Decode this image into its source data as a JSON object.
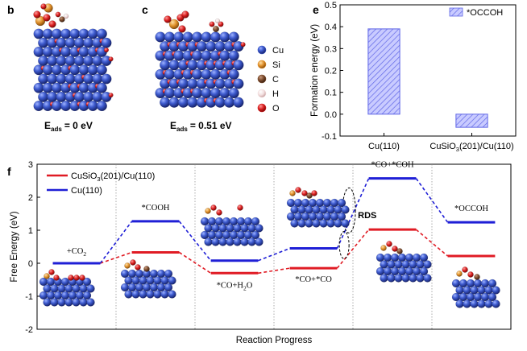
{
  "panels": {
    "b": "b",
    "c": "c",
    "e": "e",
    "f": "f"
  },
  "structures": {
    "b_energy_main": "E",
    "b_energy_sub": "ads",
    "b_energy_value": "= 0 eV",
    "c_energy_main": "E",
    "c_energy_sub": "ads",
    "c_energy_value": "= 0.51 eV"
  },
  "atom_legend": [
    {
      "label": "Cu",
      "color": "#3a57c4"
    },
    {
      "label": "Si",
      "color": "#e0902a"
    },
    {
      "label": "C",
      "color": "#7a4a2c"
    },
    {
      "label": "H",
      "color": "#f2dede"
    },
    {
      "label": "O",
      "color": "#d42020"
    }
  ],
  "chart_data": [
    {
      "type": "bar",
      "panel": "e",
      "categories": [
        "Cu(110)",
        "CuSiO3(201)/Cu(110)"
      ],
      "category_labels": [
        {
          "main": "Cu(110)",
          "sub": "",
          "tail": ""
        },
        {
          "main": "CuSiO",
          "sub": "3",
          "tail": "(201)/Cu(110)"
        }
      ],
      "series": [
        {
          "name": "*OCCOH",
          "values": [
            0.39,
            -0.06
          ],
          "color": "#9ea3ff"
        }
      ],
      "ylabel": "Formation energy (eV)",
      "ylim": [
        -0.1,
        0.5
      ],
      "yticks": [
        "-0.1",
        "0.0",
        "0.1",
        "0.2",
        "0.3",
        "0.4",
        "0.5"
      ],
      "legend_position": "top-right"
    },
    {
      "type": "line",
      "panel": "f",
      "xlabel": "Reaction Progress",
      "ylabel": "Free Energy (eV)",
      "ylim": [
        -2,
        3
      ],
      "yticks": [
        "-2",
        "-1",
        "0",
        "1",
        "2",
        "3"
      ],
      "states": [
        {
          "main": "+CO",
          "sub": "2",
          "tail": ""
        },
        {
          "main": "*COOH",
          "sub": "",
          "tail": ""
        },
        {
          "main": "*CO+H",
          "sub": "2",
          "tail": "O"
        },
        {
          "main": "*CO+*CO",
          "sub": "",
          "tail": ""
        },
        {
          "main": "*CO+*COH",
          "sub": "",
          "tail": ""
        },
        {
          "main": "*OCCOH",
          "sub": "",
          "tail": ""
        }
      ],
      "series": [
        {
          "name": "CuSiO3(201)/Cu(110)",
          "label_main": "CuSiO",
          "label_sub": "3",
          "label_tail": "(201)/Cu(110)",
          "color": "#e01b24",
          "values": [
            0.0,
            0.33,
            -0.3,
            -0.15,
            1.02,
            0.22
          ]
        },
        {
          "name": "Cu(110)",
          "label_main": "Cu(110)",
          "label_sub": "",
          "label_tail": "",
          "color": "#1f1fd6",
          "values": [
            0.0,
            1.27,
            0.08,
            0.45,
            2.57,
            1.24
          ]
        }
      ],
      "annotation": "RDS",
      "legend_position": "top-left"
    }
  ]
}
